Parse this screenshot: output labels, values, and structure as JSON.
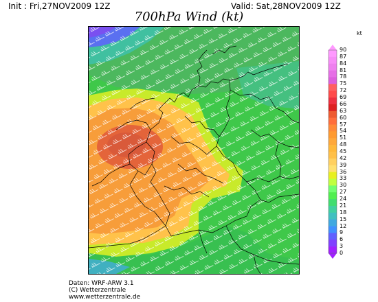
{
  "header": {
    "init": "Init : Fri,27NOV2009  12Z",
    "valid": "Valid: Sat,28NOV2009  12Z",
    "title": "700hPa Wind (kt)"
  },
  "colorbar": {
    "unit": "kt",
    "ticks": [
      90,
      87,
      84,
      81,
      78,
      75,
      72,
      69,
      66,
      63,
      60,
      57,
      54,
      51,
      48,
      45,
      42,
      39,
      36,
      33,
      30,
      27,
      24,
      21,
      18,
      15,
      12,
      9,
      6,
      3,
      0
    ],
    "colors": [
      "#ff99ff",
      "#f78cf7",
      "#ee7fee",
      "#e66fe6",
      "#dd5fdd",
      "#ff6060",
      "#ff4a4a",
      "#ee2f3f",
      "#dd2020",
      "#ee5a30",
      "#ff6e3c",
      "#ff8a38",
      "#ff9a30",
      "#ffa83a",
      "#ffb83a",
      "#ffc048",
      "#ffd060",
      "#ffe070",
      "#e8f020",
      "#c0ff40",
      "#70ff70",
      "#50ef50",
      "#40dd70",
      "#40d0a0",
      "#40c0c0",
      "#40a8e0",
      "#4090ff",
      "#6060ff",
      "#8040ff",
      "#a020ff"
    ]
  },
  "footer": {
    "line1": "Daten: WRF-ARW 3.1",
    "line2": "(C) Wetterzentrale",
    "line3": "www.wetterzentrale.de"
  },
  "map": {
    "region": "Germany and surroundings",
    "field": "700hPa wind speed with wind barbs"
  }
}
